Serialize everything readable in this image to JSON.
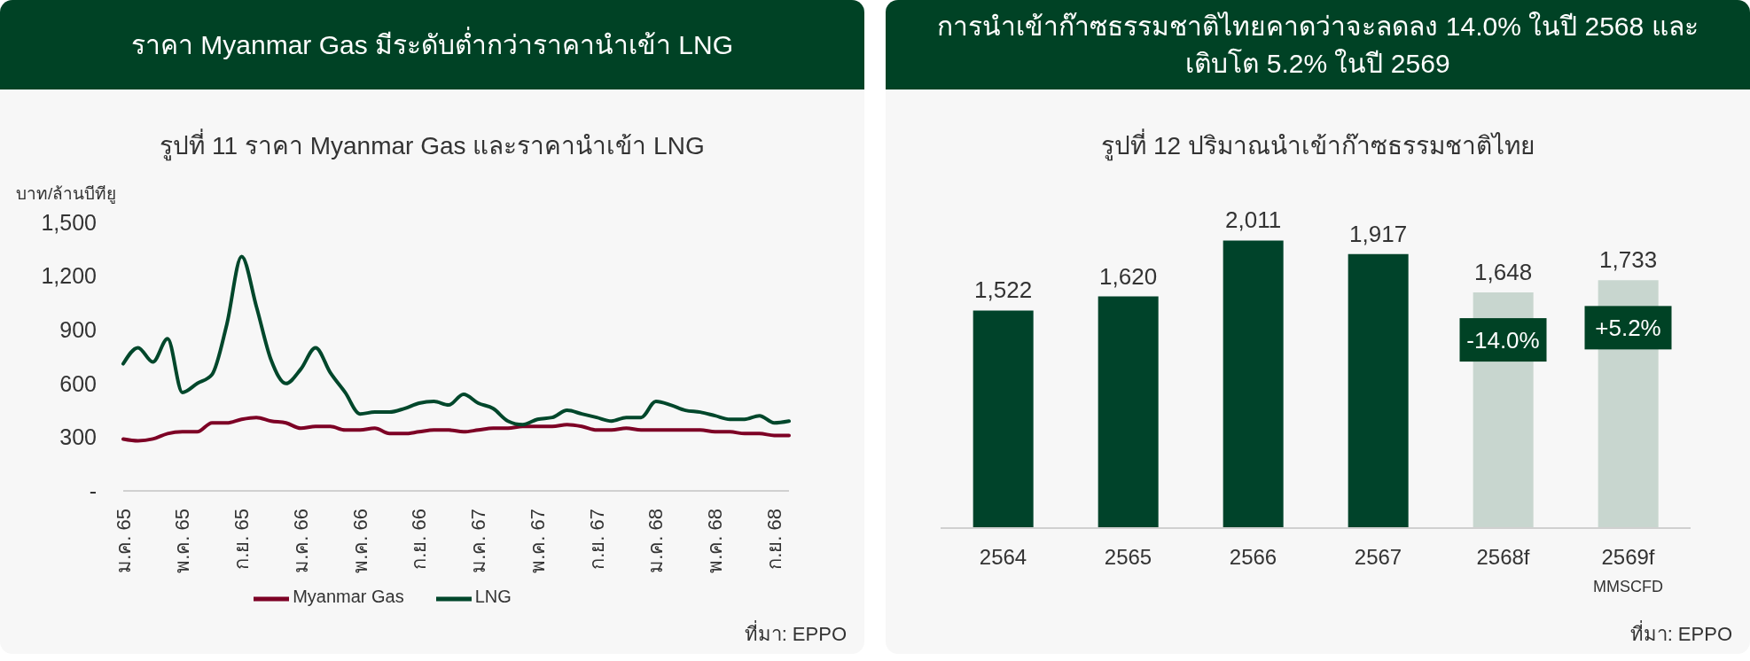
{
  "chart_data": [
    {
      "type": "line",
      "title": "ราคา Myanmar Gas มีระดับต่ำกว่าราคานำเข้า LNG",
      "subtitle": "รูปที่ 11 ราคา Myanmar Gas และราคานำเข้า LNG",
      "ylabel": "บาท/ล้านบีทียู",
      "categories": [
        "ม.ค. 65",
        null,
        null,
        null,
        "พ.ค. 65",
        null,
        null,
        null,
        "ก.ย. 65",
        null,
        null,
        null,
        "ม.ค. 66",
        null,
        null,
        null,
        "พ.ค. 66",
        null,
        null,
        null,
        "ก.ย. 66",
        null,
        null,
        null,
        "ม.ค. 67",
        null,
        null,
        null,
        "พ.ค. 67",
        null,
        null,
        null,
        "ก.ย. 67",
        null,
        null,
        null,
        "ม.ค. 68",
        null,
        null,
        null,
        "พ.ค. 68",
        null,
        null,
        null,
        "ก.ย. 68",
        null
      ],
      "series": [
        {
          "name": "Myanmar Gas",
          "color": "#7d0025",
          "values": [
            290,
            280,
            290,
            320,
            330,
            330,
            380,
            380,
            400,
            410,
            390,
            380,
            350,
            360,
            360,
            340,
            340,
            350,
            320,
            320,
            330,
            340,
            340,
            330,
            340,
            350,
            350,
            360,
            360,
            360,
            370,
            360,
            340,
            340,
            350,
            340,
            340,
            340,
            340,
            340,
            330,
            330,
            320,
            320,
            310,
            310
          ]
        },
        {
          "name": "LNG",
          "color": "#00472b",
          "values": [
            710,
            800,
            720,
            850,
            550,
            600,
            650,
            930,
            1310,
            1030,
            730,
            600,
            680,
            800,
            660,
            550,
            430,
            440,
            440,
            460,
            490,
            500,
            480,
            540,
            490,
            460,
            390,
            370,
            400,
            410,
            450,
            430,
            410,
            390,
            410,
            410,
            500,
            480,
            450,
            440,
            420,
            400,
            400,
            420,
            380,
            390
          ]
        }
      ],
      "ylim": [
        0,
        1500
      ],
      "yticks": [
        {
          "value": 0,
          "label": "-"
        },
        300,
        600,
        900,
        {
          "value": 1200,
          "label": "1,200"
        },
        {
          "value": 1500,
          "label": "1,500"
        }
      ],
      "legend": "bottom",
      "annotations": [
        "ที่มา: EPPO"
      ]
    },
    {
      "type": "bar",
      "title": "การนำเข้าก๊าซธรรมชาติไทยคาดว่าจะลดลง 14.0% ในปี 2568 และเติบโต 5.2% ในปี 2569",
      "subtitle": "รูปที่ 12 ปริมาณนำเข้าก๊าซธรรมชาติไทย",
      "categories": [
        "2564",
        "2565",
        "2566",
        "2567",
        "2568f",
        "2569f"
      ],
      "values": [
        1522,
        1620,
        2011,
        1917,
        1648,
        1733
      ],
      "value_labels": [
        "1,522",
        "1,620",
        "2,011",
        "1,917",
        "1,648",
        "1,733"
      ],
      "colors": [
        "#00432a",
        "#00432a",
        "#00432a",
        "#00432a",
        "#c8d6cf",
        "#c8d6cf"
      ],
      "tick_labels": "x",
      "annotations": [
        {
          "text": "-14.0%",
          "x": "2568f",
          "y": 1648
        },
        {
          "text": "+5.2%",
          "x": "2569f",
          "y": 1733
        },
        "MMSCFD",
        "ที่มา: EPPO"
      ]
    }
  ]
}
